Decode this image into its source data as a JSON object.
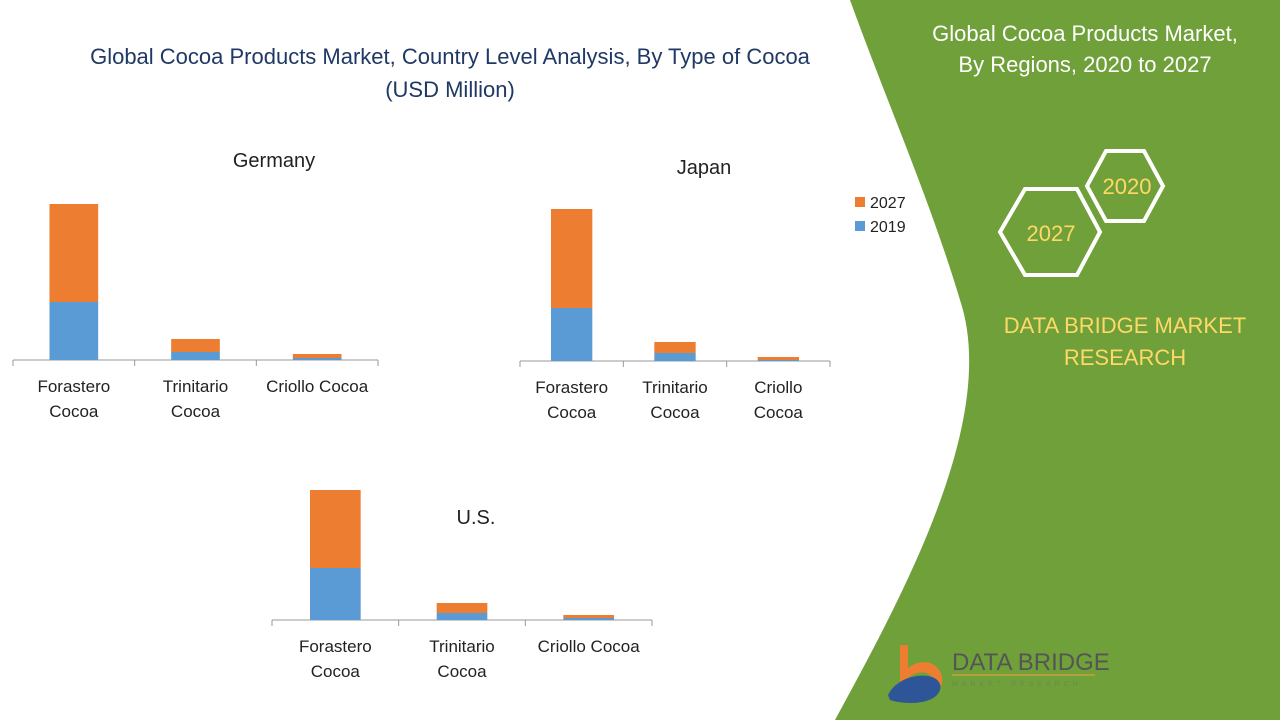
{
  "title_line1": "Global Cocoa Products Market, Country Level Analysis, By Type of Cocoa",
  "title_line2": "(USD Million)",
  "side": {
    "heading_line1": "Global Cocoa Products Market,",
    "heading_line2": "By Regions, 2020 to 2027",
    "hex_1": "2020",
    "hex_2": "2027",
    "brand_line1": "DATA BRIDGE MARKET",
    "brand_line2": "RESEARCH",
    "logo_text": "DATA BRIDGE",
    "logo_subtext": "MARKET RESEARCH"
  },
  "colors": {
    "series_2019": "#5b9bd5",
    "series_2027": "#ed7d31",
    "panel": "#70a03a",
    "title": "#1f3864",
    "brand": "#ffd966"
  },
  "legend": [
    "2027",
    "2019"
  ],
  "chart_data": [
    {
      "type": "bar",
      "stacked": true,
      "title": "Germany",
      "categories": [
        [
          "Forastero",
          "Cocoa"
        ],
        [
          "Trinitario",
          "Cocoa"
        ],
        [
          "Criollo Cocoa"
        ]
      ],
      "series": [
        {
          "name": "2019",
          "values": [
            58,
            8,
            2
          ]
        },
        {
          "name": "2027",
          "values": [
            98,
            13,
            4
          ]
        }
      ]
    },
    {
      "type": "bar",
      "stacked": true,
      "title": "Japan",
      "categories": [
        [
          "Forastero",
          "Cocoa"
        ],
        [
          "Trinitario",
          "Cocoa"
        ],
        [
          "Criollo",
          "Cocoa"
        ]
      ],
      "series": [
        {
          "name": "2019",
          "values": [
            53,
            8,
            1
          ]
        },
        {
          "name": "2027",
          "values": [
            99,
            11,
            3
          ]
        }
      ]
    },
    {
      "type": "bar",
      "stacked": true,
      "title": "U.S.",
      "categories": [
        [
          "Forastero",
          "Cocoa"
        ],
        [
          "Trinitario",
          "Cocoa"
        ],
        [
          "Criollo Cocoa"
        ]
      ],
      "series": [
        {
          "name": "2019",
          "values": [
            52,
            7,
            2
          ]
        },
        {
          "name": "2027",
          "values": [
            78,
            10,
            3
          ]
        }
      ]
    }
  ]
}
